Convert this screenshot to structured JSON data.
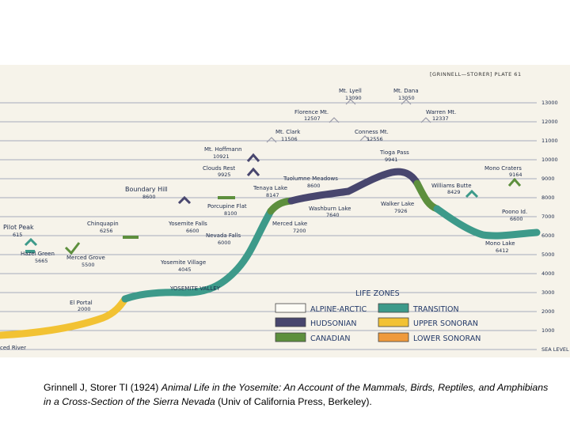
{
  "plate": {
    "header": "[GRINNELL—STORER] PLATE 61",
    "sea_level": "SEA LEVEL",
    "elevation_ticks": [
      "13000",
      "12000",
      "11000",
      "10000",
      "9000",
      "8000",
      "7000",
      "6000",
      "5000",
      "4000",
      "3000",
      "2000",
      "1000"
    ],
    "places": [
      {
        "name": "Mt. Lyell",
        "elev": "13090"
      },
      {
        "name": "Mt. Dana",
        "elev": "13050"
      },
      {
        "name": "Florence Mt.",
        "elev": "12507"
      },
      {
        "name": "Warren Mt.",
        "elev": "12337"
      },
      {
        "name": "Mt. Clark",
        "elev": "11506"
      },
      {
        "name": "Conness Mt.",
        "elev": "12556"
      },
      {
        "name": "Mt. Hoffmann",
        "elev": "10921"
      },
      {
        "name": "Tioga Pass",
        "elev": "9941"
      },
      {
        "name": "Clouds Rest",
        "elev": "9925"
      },
      {
        "name": "Mono Craters",
        "elev": "9164"
      },
      {
        "name": "Tuolumne Meadows",
        "elev": "8600"
      },
      {
        "name": "Tenaya Lake",
        "elev": "8147"
      },
      {
        "name": "Williams Butte",
        "elev": "8429"
      },
      {
        "name": "Boundary Hill",
        "elev": "8600"
      },
      {
        "name": "Porcupine Flat",
        "elev": "8100"
      },
      {
        "name": "Washburn Lake",
        "elev": "7640"
      },
      {
        "name": "Walker Lake",
        "elev": "7926"
      },
      {
        "name": "Yosemite Falls",
        "elev": "6600"
      },
      {
        "name": "Merced Lake",
        "elev": "7200"
      },
      {
        "name": "Poono Id.",
        "elev": "6600"
      },
      {
        "name": "Chinquapin",
        "elev": "6256"
      },
      {
        "name": "Pilot Peak",
        "elev": "615"
      },
      {
        "name": "Nevada Falls",
        "elev": "6000"
      },
      {
        "name": "Mono Lake",
        "elev": "6412"
      },
      {
        "name": "Hazel Green",
        "elev": "5665"
      },
      {
        "name": "Merced Grove",
        "elev": "5500"
      },
      {
        "name": "Yosemite Village",
        "elev": "4045"
      },
      {
        "name": "El Portal",
        "elev": "2000"
      }
    ],
    "valley_label": "YOSEMITE VALLEY",
    "river_label": "ced River",
    "legend": {
      "title": "LIFE ZONES",
      "zones": [
        {
          "label": "ALPINE-ARCTIC",
          "color": "#fdfcf6"
        },
        {
          "label": "HUDSONIAN",
          "color": "#48466e"
        },
        {
          "label": "CANADIAN",
          "color": "#5d8f3d"
        },
        {
          "label": "TRANSITION",
          "color": "#3d9a8a"
        },
        {
          "label": "UPPER SONORAN",
          "color": "#f2c233"
        },
        {
          "label": "LOWER SONORAN",
          "color": "#ef9a3c"
        }
      ]
    }
  },
  "caption": {
    "authors": "Grinnell J, Storer TI (1924) ",
    "title": "Animal Life in the Yosemite: An Account of the Mammals, Birds, Reptiles, and Amphibians in a Cross-Section of the Sierra Nevada",
    "publisher": " (Univ of California Press, Berkeley)."
  }
}
